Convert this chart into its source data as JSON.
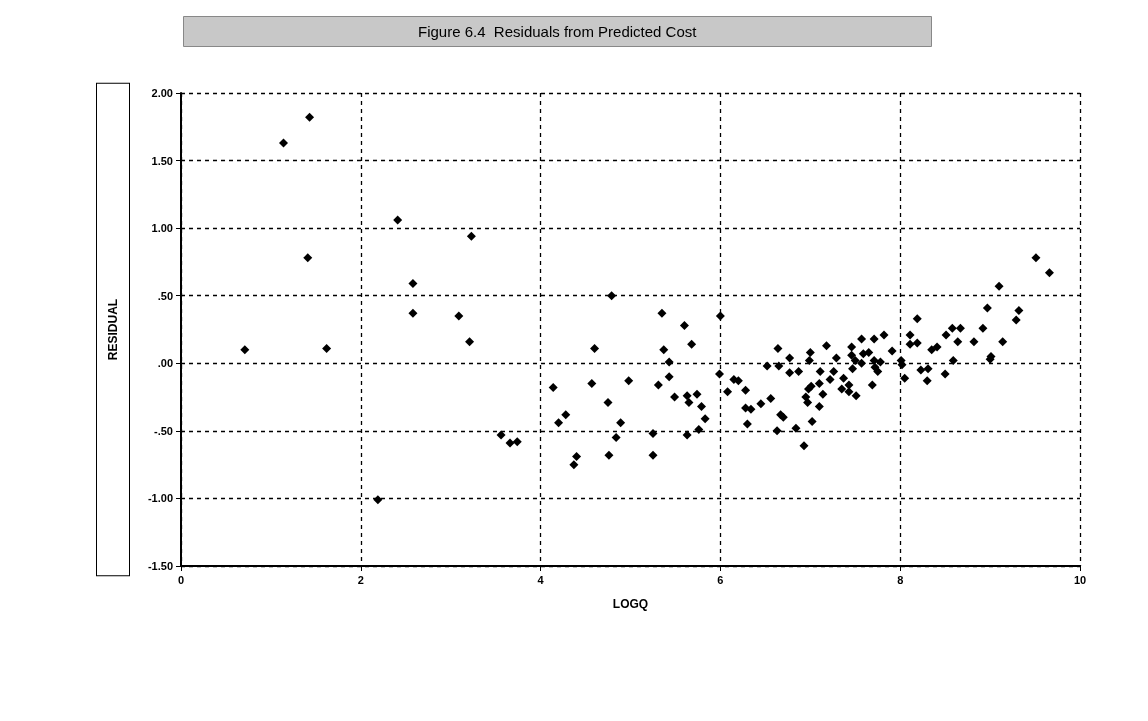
{
  "chart_data": {
    "type": "scatter",
    "title": "Figure 6.4  Residuals from Predicted Cost",
    "xlabel": "LOGQ",
    "ylabel": "RESIDUAL",
    "x": [
      0.71,
      1.14,
      1.43,
      1.41,
      1.62,
      2.19,
      2.41,
      2.58,
      2.58,
      3.09,
      3.21,
      3.23,
      3.56,
      3.66,
      3.74,
      4.79,
      5.35,
      5.6,
      6.0,
      4.6,
      5.37,
      5.68,
      5.43,
      5.43,
      5.31,
      4.14,
      4.57,
      4.98,
      5.49,
      5.63,
      5.74,
      5.65,
      5.79,
      5.83,
      5.76,
      5.63,
      5.25,
      5.25,
      4.84,
      4.89,
      4.75,
      4.76,
      4.28,
      4.2,
      4.4,
      4.37,
      5.99,
      6.08,
      6.15,
      6.2,
      6.28,
      6.28,
      6.34,
      6.3,
      6.45,
      6.56,
      6.64,
      6.52,
      6.65,
      6.77,
      6.77,
      6.87,
      6.67,
      6.7,
      6.63,
      6.84,
      6.93,
      9.51,
      9.66,
      9.1,
      8.97,
      9.32,
      9.29,
      8.19,
      8.92,
      8.58,
      8.67,
      8.51,
      8.64,
      8.82,
      9.14,
      8.11,
      8.19,
      8.11,
      8.41,
      8.35,
      7.82,
      7.71,
      7.57,
      7.18,
      7.46,
      7.91,
      7.0,
      6.99,
      7.29,
      7.59,
      7.65,
      7.46,
      7.5,
      7.57,
      7.71,
      7.78,
      8.01,
      8.02,
      8.59,
      9.01,
      9.0,
      7.11,
      7.26,
      7.47,
      7.72,
      7.75,
      8.23,
      8.31,
      8.05,
      8.3,
      8.5,
      7.01,
      6.98,
      7.1,
      7.22,
      7.37,
      7.35,
      7.43,
      7.43,
      7.51,
      7.69,
      7.14,
      6.95,
      6.97,
      7.1,
      7.02
    ],
    "values": [
      0.1,
      1.63,
      1.82,
      0.78,
      0.11,
      -1.01,
      1.06,
      0.59,
      0.37,
      0.35,
      0.16,
      0.94,
      -0.53,
      -0.59,
      -0.58,
      0.5,
      0.37,
      0.28,
      0.35,
      0.11,
      0.1,
      0.14,
      0.01,
      -0.1,
      -0.16,
      -0.18,
      -0.15,
      -0.13,
      -0.25,
      -0.24,
      -0.23,
      -0.29,
      -0.32,
      -0.41,
      -0.49,
      -0.53,
      -0.52,
      -0.68,
      -0.55,
      -0.44,
      -0.29,
      -0.68,
      -0.38,
      -0.44,
      -0.69,
      -0.75,
      -0.08,
      -0.21,
      -0.12,
      -0.13,
      -0.2,
      -0.33,
      -0.34,
      -0.45,
      -0.3,
      -0.26,
      0.11,
      -0.02,
      -0.02,
      0.04,
      -0.07,
      -0.06,
      -0.38,
      -0.4,
      -0.5,
      -0.48,
      -0.61,
      0.78,
      0.67,
      0.57,
      0.41,
      0.39,
      0.32,
      0.33,
      0.26,
      0.26,
      0.26,
      0.21,
      0.16,
      0.16,
      0.16,
      0.21,
      0.15,
      0.14,
      0.12,
      0.1,
      0.21,
      0.18,
      0.18,
      0.13,
      0.12,
      0.09,
      0.08,
      0.02,
      0.04,
      0.07,
      0.08,
      0.06,
      0.02,
      0.0,
      0.02,
      0.01,
      0.02,
      -0.01,
      0.02,
      0.05,
      0.03,
      -0.06,
      -0.06,
      -0.04,
      -0.03,
      -0.06,
      -0.05,
      -0.04,
      -0.11,
      -0.13,
      -0.08,
      -0.17,
      -0.19,
      -0.15,
      -0.12,
      -0.11,
      -0.19,
      -0.16,
      -0.21,
      -0.24,
      -0.16,
      -0.23,
      -0.25,
      -0.29,
      -0.32,
      -0.43
    ],
    "color": "#000000",
    "marker": "diamond",
    "grid": true,
    "xlim": [
      0,
      10
    ],
    "xticks": [
      0,
      2,
      4,
      6,
      8,
      10
    ],
    "ylim": [
      -1.5,
      2.0
    ],
    "yticks": [
      {
        "value": -1.5,
        "label": "-1.50"
      },
      {
        "value": -1.0,
        "label": "-1.00"
      },
      {
        "value": -0.5,
        "label": "-.50"
      },
      {
        "value": 0,
        "label": ".00"
      },
      {
        "value": 0.5,
        "label": ".50"
      },
      {
        "value": 1.0,
        "label": "1.00"
      },
      {
        "value": 1.5,
        "label": "1.50"
      },
      {
        "value": 2.0,
        "label": "2.00"
      }
    ]
  }
}
